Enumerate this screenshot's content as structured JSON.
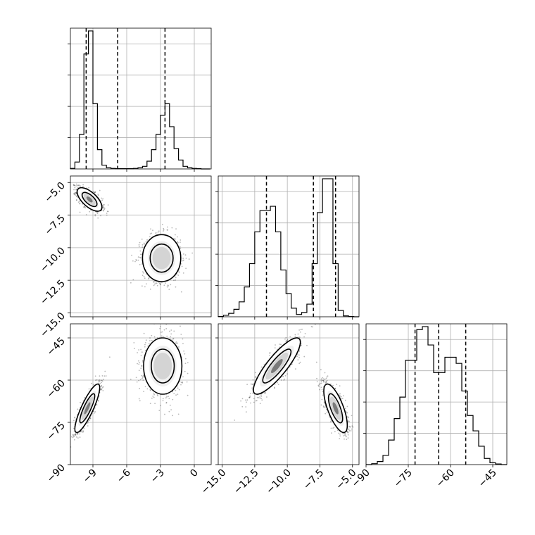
{
  "chart_data": {
    "type": "corner",
    "parameters": [
      {
        "range": [
          -11,
          1.5
        ],
        "ticks": [
          -9,
          -6,
          -3,
          0
        ],
        "tick_labels": [
          "−9",
          "−6",
          "−3",
          "0"
        ],
        "quantiles": [
          -9.6,
          -6.8,
          -2.6
        ],
        "hist_edges": [
          -11,
          -10.6,
          -10.2,
          -9.8,
          -9.4,
          -9.0,
          -8.6,
          -8.2,
          -7.8,
          -7.4,
          -7.0,
          -6.6,
          -6.2,
          -5.8,
          -5.4,
          -5.0,
          -4.6,
          -4.2,
          -3.8,
          -3.4,
          -3.0,
          -2.6,
          -2.2,
          -1.8,
          -1.4,
          -1.0,
          -0.6,
          -0.2,
          0.2,
          0.6,
          1.0,
          1.4
        ],
        "hist_counts": [
          0.2,
          2.4,
          12.0,
          40.0,
          48.0,
          22.7,
          6.7,
          1.3,
          0.4,
          0.2,
          0.1,
          0.1,
          0.1,
          0.1,
          0.2,
          0.4,
          0.9,
          2.7,
          6.7,
          12.0,
          18.7,
          22.7,
          14.7,
          7.1,
          3.1,
          0.9,
          0.4,
          0.2,
          0.1,
          0.0,
          0.0
        ]
      },
      {
        "range": [
          -15.3,
          -4.5
        ],
        "ticks": [
          -15.0,
          -12.5,
          -10.0,
          -7.5,
          -5.0
        ],
        "tick_labels": [
          "−15.0",
          "−12.5",
          "−10.0",
          "−7.5",
          "−5.0"
        ],
        "quantiles": [
          -11.6,
          -8.0,
          -6.3
        ],
        "hist_edges": [
          -15.3,
          -14.9,
          -14.5,
          -14.1,
          -13.7,
          -13.3,
          -12.9,
          -12.5,
          -12.1,
          -11.7,
          -11.3,
          -10.9,
          -10.5,
          -10.1,
          -9.7,
          -9.3,
          -8.9,
          -8.5,
          -8.1,
          -7.7,
          -7.3,
          -6.9,
          -6.5,
          -6.1,
          -5.7,
          -5.3,
          -4.9,
          -4.5
        ],
        "hist_counts": [
          0.1,
          0.5,
          1.2,
          2.6,
          5.2,
          10.4,
          18.5,
          29.6,
          37.0,
          37.0,
          38.5,
          29.6,
          16.3,
          8.1,
          3.0,
          0.8,
          1.5,
          4.4,
          18.5,
          36.3,
          48.1,
          48.1,
          18.5,
          2.2,
          0.3,
          0.1,
          0.0
        ]
      },
      {
        "range": [
          -90,
          -40
        ],
        "ticks": [
          -90,
          -75,
          -60,
          -45
        ],
        "tick_labels": [
          "−90",
          "−75",
          "−60",
          "−45"
        ],
        "quantiles": [
          -72.6,
          -64.2,
          -54.6
        ],
        "hist_edges": [
          -90,
          -88,
          -86,
          -84,
          -82,
          -80,
          -78,
          -76,
          -74,
          -72,
          -70,
          -68,
          -66,
          -64,
          -62,
          -60,
          -58,
          -56,
          -54,
          -52,
          -50,
          -48,
          -46,
          -44,
          -42,
          -40
        ],
        "hist_counts": [
          0.0,
          0.3,
          1.0,
          3.0,
          8.0,
          15.0,
          22.0,
          34.0,
          34.0,
          44.0,
          45.0,
          39.0,
          30.0,
          30.0,
          35.0,
          35.0,
          33.0,
          24.0,
          16.0,
          11.0,
          6.0,
          2.0,
          0.6,
          0.2,
          0.0
        ]
      }
    ],
    "pairs": [
      {
        "x_param": 0,
        "y_param": 1,
        "modes": [
          {
            "mean": [
              -9.3,
              -6.3
            ],
            "sd": [
              0.55,
              0.45
            ],
            "rho": -0.65,
            "weight": 0.5
          },
          {
            "mean": [
              -2.9,
              -10.8
            ],
            "sd": [
              0.85,
              0.9
            ],
            "rho": 0.0,
            "weight": 0.5
          }
        ]
      },
      {
        "x_param": 0,
        "y_param": 2,
        "modes": [
          {
            "mean": [
              -9.5,
              -70.0
            ],
            "sd": [
              0.55,
              4.3
            ],
            "rho": 0.85,
            "weight": 0.5
          },
          {
            "mean": [
              -2.8,
              -55.0
            ],
            "sd": [
              0.85,
              5.0
            ],
            "rho": 0.0,
            "weight": 0.5
          }
        ]
      },
      {
        "x_param": 1,
        "y_param": 2,
        "modes": [
          {
            "mean": [
              -10.8,
              -55.0
            ],
            "sd": [
              0.9,
              5.0
            ],
            "rho": 0.85,
            "weight": 0.5
          },
          {
            "mean": [
              -6.3,
              -70.0
            ],
            "sd": [
              0.45,
              4.3
            ],
            "rho": -0.7,
            "weight": 0.5
          }
        ]
      }
    ],
    "grid": true,
    "x_tick_rotation_deg": 45,
    "y_tick_rotation_deg": 45
  }
}
